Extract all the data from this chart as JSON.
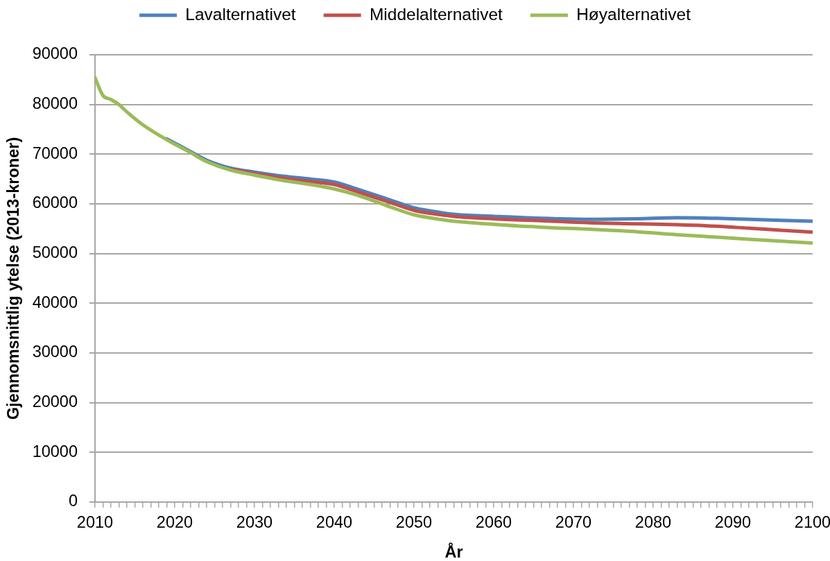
{
  "chart_data": {
    "type": "line",
    "xlabel": "År",
    "ylabel": "Gjennomsnittlig ytelse (2013-kroner)",
    "x": [
      2010,
      2011,
      2012,
      2013,
      2014,
      2016,
      2019,
      2022,
      2024,
      2027,
      2030,
      2034,
      2037,
      2040,
      2043,
      2047,
      2050,
      2052,
      2055,
      2060,
      2066,
      2072,
      2078,
      2083,
      2088,
      2092,
      2100
    ],
    "series": [
      {
        "name": "Lavalternativet",
        "color": "#4f81bd",
        "values": [
          null,
          null,
          null,
          null,
          null,
          null,
          73100,
          70500,
          68800,
          67200,
          66400,
          65500,
          65000,
          64400,
          62900,
          60800,
          59200,
          58600,
          57900,
          57500,
          57100,
          56900,
          57000,
          57200,
          57100,
          56900,
          56500
        ]
      },
      {
        "name": "Middelalternativet",
        "color": "#c0504d",
        "values": [
          null,
          null,
          null,
          null,
          null,
          null,
          null,
          null,
          null,
          67000,
          66100,
          65100,
          64500,
          63900,
          62400,
          60300,
          58700,
          58100,
          57500,
          57000,
          56600,
          56200,
          56000,
          55800,
          55500,
          55100,
          54300
        ]
      },
      {
        "name": "Høyalternativet",
        "color": "#9bbb59",
        "values": [
          85400,
          81800,
          81000,
          80000,
          78500,
          75900,
          72900,
          70300,
          68500,
          66800,
          65800,
          64600,
          63900,
          63000,
          61700,
          59400,
          57800,
          57200,
          56500,
          55900,
          55300,
          54900,
          54400,
          53800,
          53300,
          52900,
          52100
        ]
      }
    ],
    "xlim": [
      2010,
      2100
    ],
    "xticks": [
      2010,
      {
        "value": 2011,
        "label": null
      },
      {
        "value": 2012,
        "label": null
      },
      {
        "value": 2013,
        "label": null
      },
      {
        "value": 2014,
        "label": null
      },
      {
        "value": 2015,
        "label": null
      },
      {
        "value": 2016,
        "label": null
      },
      {
        "value": 2017,
        "label": null
      },
      {
        "value": 2018,
        "label": null
      },
      {
        "value": 2019,
        "label": null
      },
      2020,
      {
        "value": 2021,
        "label": null
      },
      {
        "value": 2022,
        "label": null
      },
      {
        "value": 2023,
        "label": null
      },
      {
        "value": 2024,
        "label": null
      },
      {
        "value": 2025,
        "label": null
      },
      {
        "value": 2026,
        "label": null
      },
      {
        "value": 2027,
        "label": null
      },
      {
        "value": 2028,
        "label": null
      },
      {
        "value": 2029,
        "label": null
      },
      2030,
      {
        "value": 2031,
        "label": null
      },
      {
        "value": 2032,
        "label": null
      },
      {
        "value": 2033,
        "label": null
      },
      {
        "value": 2034,
        "label": null
      },
      {
        "value": 2035,
        "label": null
      },
      {
        "value": 2036,
        "label": null
      },
      {
        "value": 2037,
        "label": null
      },
      {
        "value": 2038,
        "label": null
      },
      {
        "value": 2039,
        "label": null
      },
      2040,
      {
        "value": 2041,
        "label": null
      },
      {
        "value": 2042,
        "label": null
      },
      {
        "value": 2043,
        "label": null
      },
      {
        "value": 2044,
        "label": null
      },
      {
        "value": 2045,
        "label": null
      },
      {
        "value": 2046,
        "label": null
      },
      {
        "value": 2047,
        "label": null
      },
      {
        "value": 2048,
        "label": null
      },
      {
        "value": 2049,
        "label": null
      },
      2050,
      {
        "value": 2051,
        "label": null
      },
      {
        "value": 2052,
        "label": null
      },
      {
        "value": 2053,
        "label": null
      },
      {
        "value": 2054,
        "label": null
      },
      {
        "value": 2055,
        "label": null
      },
      {
        "value": 2056,
        "label": null
      },
      {
        "value": 2057,
        "label": null
      },
      {
        "value": 2058,
        "label": null
      },
      {
        "value": 2059,
        "label": null
      },
      2060,
      {
        "value": 2061,
        "label": null
      },
      {
        "value": 2062,
        "label": null
      },
      {
        "value": 2063,
        "label": null
      },
      {
        "value": 2064,
        "label": null
      },
      {
        "value": 2065,
        "label": null
      },
      {
        "value": 2066,
        "label": null
      },
      {
        "value": 2067,
        "label": null
      },
      {
        "value": 2068,
        "label": null
      },
      {
        "value": 2069,
        "label": null
      },
      2070,
      {
        "value": 2071,
        "label": null
      },
      {
        "value": 2072,
        "label": null
      },
      {
        "value": 2073,
        "label": null
      },
      {
        "value": 2074,
        "label": null
      },
      {
        "value": 2075,
        "label": null
      },
      {
        "value": 2076,
        "label": null
      },
      {
        "value": 2077,
        "label": null
      },
      {
        "value": 2078,
        "label": null
      },
      {
        "value": 2079,
        "label": null
      },
      2080,
      {
        "value": 2081,
        "label": null
      },
      {
        "value": 2082,
        "label": null
      },
      {
        "value": 2083,
        "label": null
      },
      {
        "value": 2084,
        "label": null
      },
      {
        "value": 2085,
        "label": null
      },
      {
        "value": 2086,
        "label": null
      },
      {
        "value": 2087,
        "label": null
      },
      {
        "value": 2088,
        "label": null
      },
      {
        "value": 2089,
        "label": null
      },
      2090,
      {
        "value": 2091,
        "label": null
      },
      {
        "value": 2092,
        "label": null
      },
      {
        "value": 2093,
        "label": null
      },
      {
        "value": 2094,
        "label": null
      },
      {
        "value": 2095,
        "label": null
      },
      {
        "value": 2096,
        "label": null
      },
      {
        "value": 2097,
        "label": null
      },
      {
        "value": 2098,
        "label": null
      },
      {
        "value": 2099,
        "label": null
      },
      2100
    ],
    "ylim": [
      0,
      90000
    ],
    "yticks": [
      0,
      10000,
      20000,
      30000,
      40000,
      50000,
      60000,
      70000,
      80000,
      90000
    ],
    "grid": "y",
    "legend": "top",
    "marker": "none",
    "line_style": "solid"
  }
}
